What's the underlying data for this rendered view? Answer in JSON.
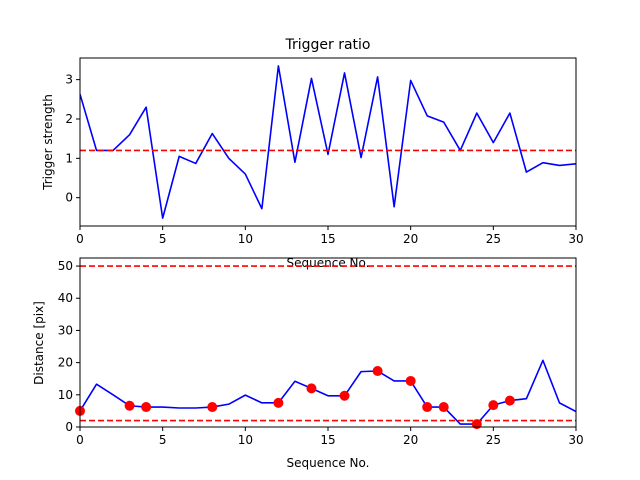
{
  "chart_data": [
    {
      "type": "line",
      "title": "Trigger ratio",
      "xlabel": "Sequence No.",
      "ylabel": "Trigger strength",
      "xlim": [
        0,
        30
      ],
      "ylim": [
        -0.72,
        3.55
      ],
      "xticks": [
        0,
        5,
        10,
        15,
        20,
        25,
        30
      ],
      "yticks": [
        0,
        1,
        2,
        3
      ],
      "grid": false,
      "series": [
        {
          "color": "#0000ff",
          "x": [
            0,
            1,
            2,
            3,
            4,
            5,
            6,
            7,
            8,
            9,
            10,
            11,
            12,
            13,
            14,
            15,
            16,
            17,
            18,
            19,
            20,
            21,
            22,
            23,
            24,
            25,
            26,
            27,
            28,
            29,
            30
          ],
          "y": [
            2.63,
            1.2,
            1.2,
            1.6,
            2.3,
            -0.52,
            1.05,
            0.87,
            1.63,
            1.0,
            0.6,
            -0.28,
            3.35,
            0.9,
            3.03,
            1.1,
            3.17,
            1.02,
            3.07,
            -0.23,
            2.98,
            2.08,
            1.92,
            1.2,
            2.15,
            1.4,
            2.15,
            0.65,
            0.89,
            0.82,
            0.86
          ]
        }
      ],
      "hlines": [
        {
          "y": 1.2,
          "color": "#ff0000",
          "style": "dashed"
        }
      ]
    },
    {
      "type": "line",
      "title": "",
      "xlabel": "Sequence No.",
      "ylabel": "Distance [pix]",
      "xlim": [
        0,
        30
      ],
      "ylim": [
        0,
        52.5
      ],
      "xticks": [
        0,
        5,
        10,
        15,
        20,
        25,
        30
      ],
      "yticks": [
        0,
        10,
        20,
        30,
        40,
        50
      ],
      "grid": false,
      "series": [
        {
          "color": "#0000ff",
          "x": [
            0,
            1,
            2,
            3,
            4,
            5,
            6,
            7,
            8,
            9,
            10,
            11,
            12,
            13,
            14,
            15,
            16,
            17,
            18,
            19,
            20,
            21,
            22,
            23,
            24,
            25,
            26,
            27,
            28,
            29,
            30
          ],
          "y": [
            5.0,
            13.3,
            10.0,
            6.6,
            6.2,
            6.2,
            5.9,
            5.9,
            6.2,
            7.1,
            9.9,
            7.5,
            7.5,
            14.2,
            12.0,
            9.7,
            9.7,
            17.2,
            17.4,
            14.3,
            14.3,
            6.2,
            6.2,
            0.9,
            0.9,
            6.8,
            8.2,
            8.8,
            20.7,
            7.5,
            4.8
          ]
        },
        {
          "type": "scatter",
          "color": "#ff0000",
          "x": [
            0,
            3,
            4,
            8,
            12,
            14,
            16,
            18,
            20,
            21,
            22,
            24,
            25,
            26
          ],
          "y": [
            5.0,
            6.6,
            6.2,
            6.2,
            7.5,
            12.0,
            9.7,
            17.4,
            14.3,
            6.2,
            6.2,
            0.9,
            6.8,
            8.2
          ]
        }
      ],
      "hlines": [
        {
          "y": 50,
          "color": "#ff0000",
          "style": "dashed"
        },
        {
          "y": 2,
          "color": "#ff0000",
          "style": "dashed"
        }
      ]
    }
  ]
}
